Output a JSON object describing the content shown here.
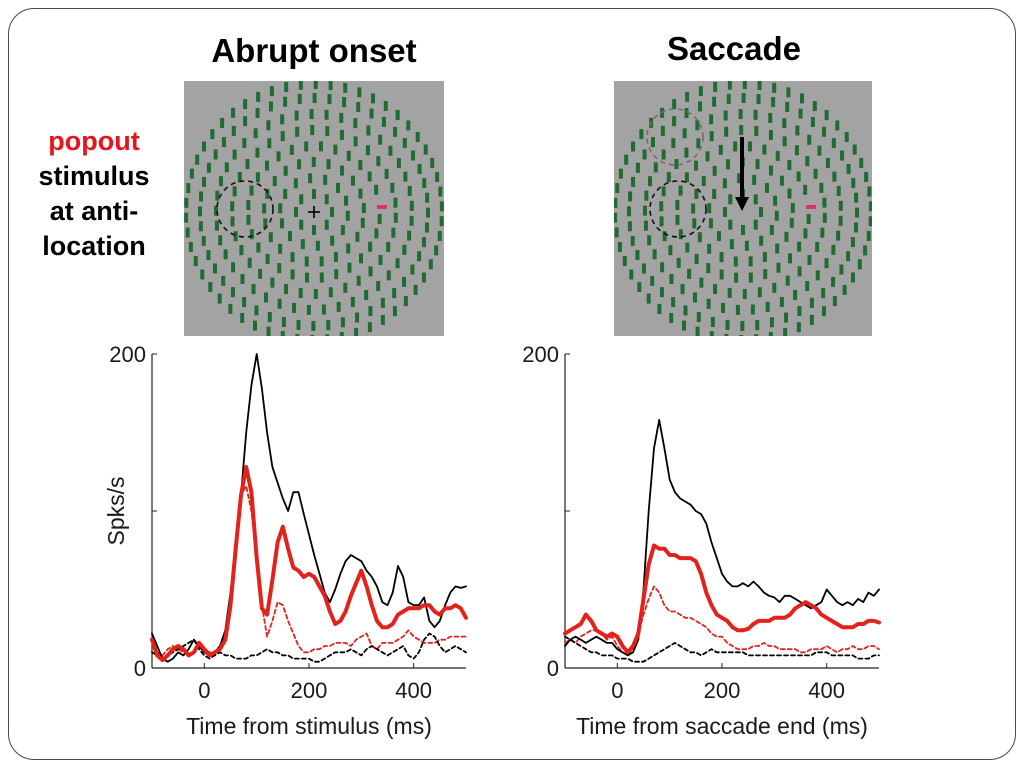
{
  "slide": {
    "title_left": "Abrupt onset",
    "title_right": "Saccade",
    "side_label": {
      "highlight": "popout",
      "line1": "stimulus",
      "line2": "at anti-",
      "line3": "location"
    }
  },
  "colors": {
    "stim_background": "#a3a3a3",
    "stim_bars": "#1f6b32",
    "popout": "#e0306a",
    "red_series": "#e3231b",
    "black_series": "#000000"
  },
  "stimulus_left": {
    "fixation_symbol": "+",
    "has_popout_bar": true,
    "has_dashed_rf_circle": true
  },
  "stimulus_right": {
    "fixation_symbol": "",
    "has_saccade_arrow": true,
    "has_dashed_rf_circle": true,
    "has_gray_dashed_circle": true
  },
  "chart_data": [
    {
      "type": "line",
      "xlabel": "Time from stimulus (ms)",
      "ylabel": "Spks/s",
      "xlim": [
        -100,
        500
      ],
      "ylim": [
        0,
        200
      ],
      "xticks": [
        "0",
        "200",
        "400"
      ],
      "xtick_values": [
        0,
        200,
        400
      ],
      "yticks": [
        "0",
        "200"
      ],
      "ytick_values": [
        0,
        200
      ],
      "ytick_marks": [
        0,
        100,
        200
      ],
      "series": [
        {
          "color": "#000000",
          "style": "solid-thin",
          "x": [
            -100,
            -90,
            -80,
            -70,
            -60,
            -50,
            -40,
            -30,
            -20,
            -10,
            0,
            10,
            20,
            30,
            40,
            50,
            60,
            70,
            80,
            90,
            100,
            110,
            120,
            130,
            140,
            150,
            160,
            170,
            180,
            190,
            200,
            210,
            220,
            230,
            240,
            250,
            260,
            270,
            280,
            290,
            300,
            310,
            320,
            330,
            340,
            350,
            360,
            370,
            380,
            390,
            400,
            410,
            420,
            430,
            440,
            450,
            460,
            470,
            480,
            490,
            500
          ],
          "y": [
            22,
            14,
            6,
            4,
            6,
            10,
            8,
            12,
            18,
            14,
            10,
            8,
            10,
            14,
            24,
            48,
            80,
            110,
            150,
            180,
            200,
            178,
            150,
            128,
            118,
            108,
            100,
            112,
            112,
            98,
            85,
            72,
            60,
            48,
            42,
            50,
            60,
            68,
            72,
            70,
            68,
            62,
            58,
            52,
            42,
            40,
            48,
            65,
            58,
            42,
            40,
            40,
            45,
            30,
            26,
            30,
            40,
            48,
            52,
            51,
            52
          ]
        },
        {
          "color": "#e3231b",
          "style": "solid-thick",
          "x": [
            -100,
            -90,
            -80,
            -70,
            -60,
            -50,
            -40,
            -30,
            -20,
            -10,
            0,
            10,
            20,
            30,
            40,
            50,
            60,
            70,
            80,
            90,
            100,
            110,
            120,
            130,
            140,
            150,
            160,
            170,
            180,
            190,
            200,
            210,
            220,
            230,
            240,
            250,
            260,
            270,
            280,
            290,
            300,
            310,
            320,
            330,
            340,
            350,
            360,
            370,
            380,
            390,
            400,
            410,
            420,
            430,
            440,
            450,
            460,
            470,
            480,
            490,
            500
          ],
          "y": [
            18,
            8,
            5,
            8,
            12,
            14,
            12,
            8,
            10,
            16,
            12,
            8,
            10,
            12,
            18,
            40,
            76,
            110,
            128,
            112,
            70,
            38,
            34,
            56,
            80,
            90,
            76,
            64,
            62,
            58,
            60,
            58,
            52,
            46,
            36,
            28,
            30,
            36,
            46,
            54,
            62,
            52,
            40,
            30,
            26,
            26,
            28,
            34,
            36,
            38,
            38,
            38,
            40,
            40,
            36,
            34,
            38,
            38,
            40,
            38,
            32
          ]
        },
        {
          "color": "#e3231b",
          "style": "dashed",
          "x": [
            -100,
            -90,
            -80,
            -70,
            -60,
            -50,
            -40,
            -30,
            -20,
            -10,
            0,
            10,
            20,
            30,
            40,
            50,
            60,
            70,
            80,
            90,
            100,
            110,
            120,
            130,
            140,
            150,
            160,
            170,
            180,
            190,
            200,
            210,
            220,
            230,
            240,
            250,
            260,
            270,
            280,
            290,
            300,
            310,
            320,
            330,
            340,
            350,
            360,
            370,
            380,
            390,
            400,
            410,
            420,
            430,
            440,
            450,
            460,
            470,
            480,
            490,
            500
          ],
          "y": [
            14,
            10,
            8,
            12,
            14,
            12,
            10,
            8,
            10,
            14,
            12,
            10,
            10,
            14,
            20,
            38,
            70,
            110,
            116,
            100,
            70,
            40,
            20,
            30,
            42,
            40,
            30,
            22,
            14,
            10,
            10,
            12,
            12,
            14,
            14,
            16,
            16,
            16,
            14,
            18,
            20,
            22,
            14,
            12,
            16,
            16,
            16,
            18,
            20,
            24,
            20,
            18,
            16,
            16,
            16,
            18,
            18,
            20,
            20,
            20,
            20
          ]
        },
        {
          "color": "#000000",
          "style": "dashed",
          "x": [
            -100,
            -90,
            -80,
            -70,
            -60,
            -50,
            -40,
            -30,
            -20,
            -10,
            0,
            10,
            20,
            30,
            40,
            50,
            60,
            70,
            80,
            90,
            100,
            110,
            120,
            130,
            140,
            150,
            160,
            170,
            180,
            190,
            200,
            210,
            220,
            230,
            240,
            250,
            260,
            270,
            280,
            290,
            300,
            310,
            320,
            330,
            340,
            350,
            360,
            370,
            380,
            390,
            400,
            410,
            420,
            430,
            440,
            450,
            460,
            470,
            480,
            490,
            500
          ],
          "y": [
            10,
            8,
            6,
            8,
            10,
            12,
            14,
            16,
            18,
            12,
            8,
            6,
            8,
            10,
            8,
            8,
            6,
            6,
            6,
            8,
            8,
            10,
            12,
            10,
            10,
            8,
            8,
            6,
            6,
            6,
            6,
            4,
            4,
            6,
            8,
            10,
            10,
            10,
            12,
            10,
            8,
            12,
            14,
            12,
            10,
            8,
            10,
            12,
            14,
            8,
            6,
            10,
            18,
            22,
            20,
            14,
            10,
            12,
            14,
            12,
            10
          ]
        }
      ]
    },
    {
      "type": "line",
      "xlabel": "Time from saccade end (ms)",
      "ylabel": "",
      "xlim": [
        -100,
        500
      ],
      "ylim": [
        0,
        200
      ],
      "xticks": [
        "0",
        "200",
        "400"
      ],
      "xtick_values": [
        0,
        200,
        400
      ],
      "yticks": [
        "0",
        "200"
      ],
      "ytick_values": [
        0,
        200
      ],
      "ytick_marks": [
        0,
        100,
        200
      ],
      "series": [
        {
          "color": "#000000",
          "style": "solid-thin",
          "x": [
            -100,
            -90,
            -80,
            -70,
            -60,
            -50,
            -40,
            -30,
            -20,
            -10,
            0,
            10,
            20,
            30,
            40,
            50,
            60,
            70,
            80,
            90,
            100,
            110,
            120,
            130,
            140,
            150,
            160,
            170,
            180,
            190,
            200,
            210,
            220,
            230,
            240,
            250,
            260,
            270,
            280,
            290,
            300,
            310,
            320,
            330,
            340,
            350,
            360,
            370,
            380,
            390,
            400,
            410,
            420,
            430,
            440,
            450,
            460,
            470,
            480,
            490,
            500
          ],
          "y": [
            14,
            18,
            20,
            18,
            16,
            18,
            20,
            18,
            16,
            16,
            12,
            10,
            8,
            10,
            18,
            50,
            100,
            140,
            158,
            140,
            120,
            112,
            108,
            106,
            104,
            100,
            98,
            92,
            80,
            70,
            60,
            55,
            52,
            52,
            54,
            52,
            55,
            52,
            48,
            46,
            45,
            42,
            46,
            46,
            44,
            42,
            40,
            38,
            40,
            42,
            50,
            46,
            42,
            40,
            42,
            40,
            44,
            42,
            48,
            46,
            50
          ]
        },
        {
          "color": "#e3231b",
          "style": "solid-thick",
          "x": [
            -100,
            -90,
            -80,
            -70,
            -60,
            -50,
            -40,
            -30,
            -20,
            -10,
            0,
            10,
            20,
            30,
            40,
            50,
            60,
            70,
            80,
            90,
            100,
            110,
            120,
            130,
            140,
            150,
            160,
            170,
            180,
            190,
            200,
            210,
            220,
            230,
            240,
            250,
            260,
            270,
            280,
            290,
            300,
            310,
            320,
            330,
            340,
            350,
            360,
            370,
            380,
            390,
            400,
            410,
            420,
            430,
            440,
            450,
            460,
            470,
            480,
            490,
            500
          ],
          "y": [
            22,
            24,
            26,
            28,
            34,
            30,
            24,
            22,
            20,
            22,
            20,
            14,
            10,
            14,
            22,
            44,
            66,
            78,
            76,
            76,
            72,
            72,
            70,
            70,
            70,
            68,
            60,
            48,
            40,
            34,
            32,
            30,
            26,
            24,
            24,
            25,
            28,
            30,
            30,
            30,
            32,
            32,
            32,
            34,
            38,
            40,
            42,
            40,
            38,
            34,
            32,
            30,
            28,
            26,
            26,
            26,
            28,
            28,
            30,
            30,
            29
          ]
        },
        {
          "color": "#e3231b",
          "style": "dashed",
          "x": [
            -100,
            -90,
            -80,
            -70,
            -60,
            -50,
            -40,
            -30,
            -20,
            -10,
            0,
            10,
            20,
            30,
            40,
            50,
            60,
            70,
            80,
            90,
            100,
            110,
            120,
            130,
            140,
            150,
            160,
            170,
            180,
            190,
            200,
            210,
            220,
            230,
            240,
            250,
            260,
            270,
            280,
            290,
            300,
            310,
            320,
            330,
            340,
            350,
            360,
            370,
            380,
            390,
            400,
            410,
            420,
            430,
            440,
            450,
            460,
            470,
            480,
            490,
            500
          ],
          "y": [
            16,
            18,
            16,
            20,
            22,
            24,
            24,
            22,
            18,
            20,
            14,
            10,
            8,
            12,
            22,
            34,
            44,
            52,
            48,
            40,
            36,
            36,
            34,
            32,
            32,
            30,
            28,
            26,
            22,
            20,
            20,
            16,
            14,
            12,
            12,
            12,
            14,
            14,
            16,
            14,
            14,
            12,
            12,
            12,
            12,
            10,
            10,
            12,
            12,
            12,
            14,
            12,
            10,
            12,
            12,
            14,
            12,
            12,
            14,
            14,
            12
          ]
        },
        {
          "color": "#000000",
          "style": "dashed",
          "x": [
            -100,
            -90,
            -80,
            -70,
            -60,
            -50,
            -40,
            -30,
            -20,
            -10,
            0,
            10,
            20,
            30,
            40,
            50,
            60,
            70,
            80,
            90,
            100,
            110,
            120,
            130,
            140,
            150,
            160,
            170,
            180,
            190,
            200,
            210,
            220,
            230,
            240,
            250,
            260,
            270,
            280,
            290,
            300,
            310,
            320,
            330,
            340,
            350,
            360,
            370,
            380,
            390,
            400,
            410,
            420,
            430,
            440,
            450,
            460,
            470,
            480,
            490,
            500
          ],
          "y": [
            20,
            18,
            16,
            14,
            12,
            10,
            10,
            8,
            8,
            8,
            6,
            6,
            6,
            4,
            4,
            4,
            6,
            8,
            10,
            12,
            14,
            16,
            14,
            12,
            10,
            10,
            8,
            10,
            12,
            10,
            10,
            10,
            10,
            10,
            10,
            8,
            8,
            8,
            8,
            8,
            8,
            8,
            8,
            8,
            8,
            8,
            8,
            8,
            10,
            10,
            10,
            8,
            8,
            8,
            8,
            8,
            6,
            6,
            6,
            8,
            8
          ]
        }
      ]
    }
  ]
}
